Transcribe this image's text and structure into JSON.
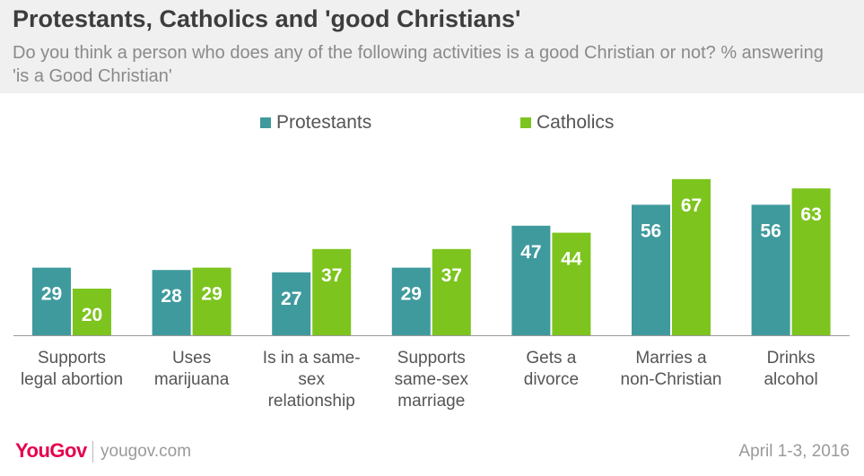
{
  "header": {
    "title": "Protestants, Catholics and 'good Christians'",
    "subtitle": "Do you think a person who does any of the following activities is a good Christian or not? % answering 'is a Good Christian'"
  },
  "footer": {
    "logo": "YouGov",
    "site": "yougov.com",
    "date": "April 1-3, 2016"
  },
  "colors": {
    "protestants": "#3f9a9d",
    "catholics": "#7dc41e"
  },
  "chart_data": {
    "type": "bar",
    "categories": [
      [
        "Supports",
        "legal abortion"
      ],
      [
        "Uses",
        "marijuana"
      ],
      [
        "Is in a same-",
        "sex",
        "relationship"
      ],
      [
        "Supports",
        "same-sex",
        "marriage"
      ],
      [
        "Gets a",
        "divorce"
      ],
      [
        "Marries a",
        "non-Christian"
      ],
      [
        "Drinks",
        "alcohol"
      ]
    ],
    "series": [
      {
        "name": "Protestants",
        "values": [
          29,
          28,
          27,
          29,
          47,
          56,
          56
        ]
      },
      {
        "name": "Catholics",
        "values": [
          20,
          29,
          37,
          37,
          44,
          67,
          63
        ]
      }
    ],
    "ylim": [
      0,
      67
    ],
    "grid": false,
    "legend": "top-center"
  }
}
